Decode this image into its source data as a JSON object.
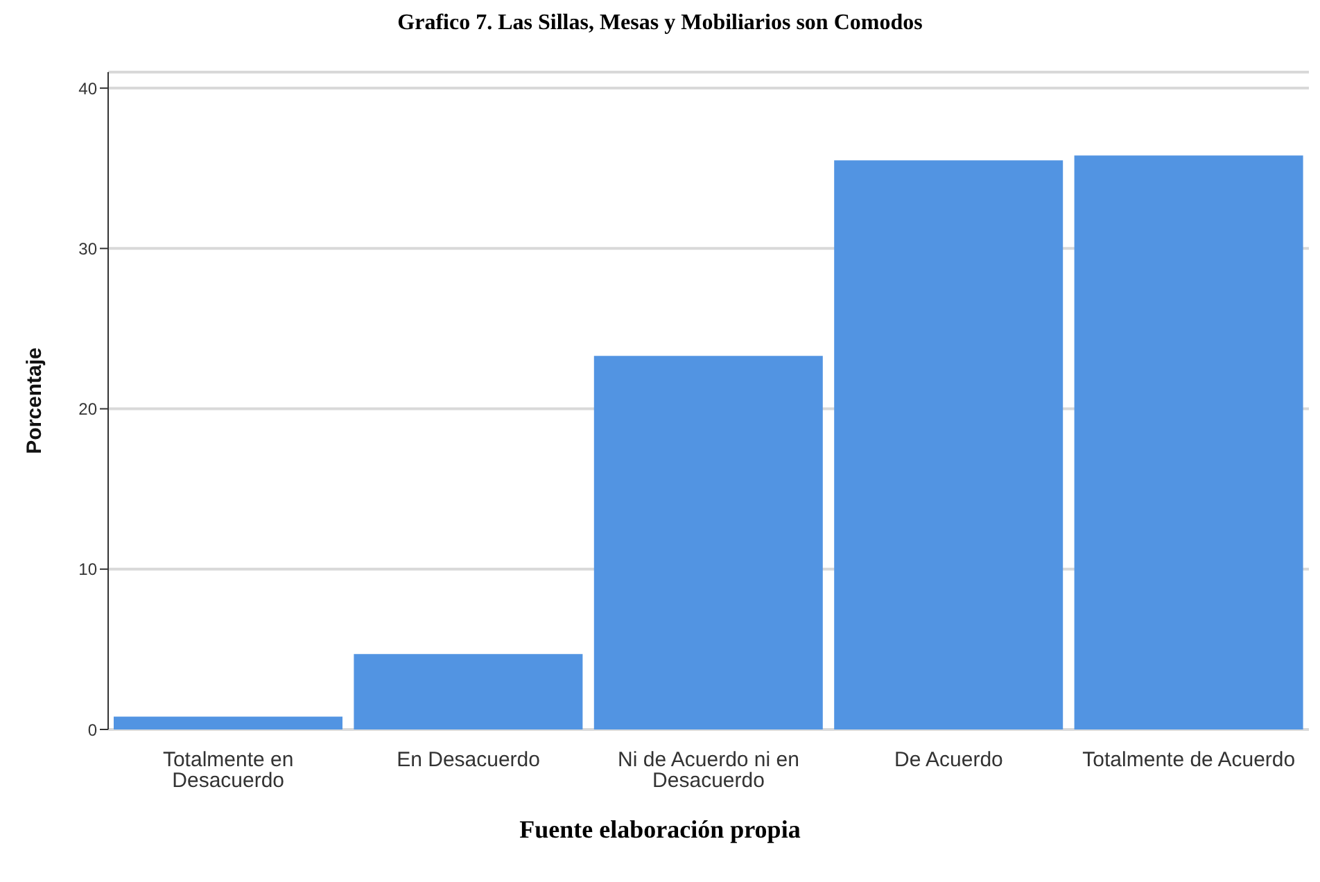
{
  "chart_data": {
    "type": "bar",
    "title": "Grafico 7. Las Sillas, Mesas y Mobiliarios son Comodos",
    "ylabel": "Porcentaje",
    "categories": [
      "Totalmente en Desacuerdo",
      "En Desacuerdo",
      "Ni de Acuerdo ni en Desacuerdo",
      "De Acuerdo",
      "Totalmente de Acuerdo"
    ],
    "values": [
      0.8,
      4.7,
      23.3,
      35.5,
      35.8
    ],
    "color": "#5294e2",
    "ylim": [
      0,
      41
    ],
    "yticks": [
      0,
      10,
      20,
      30,
      40
    ],
    "grid": "y",
    "annotations": [
      "Fuente elaboración propia"
    ]
  }
}
